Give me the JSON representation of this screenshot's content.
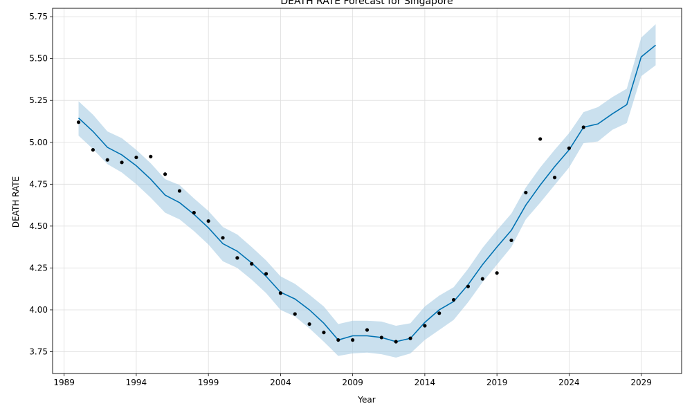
{
  "chart_data": {
    "type": "line",
    "title": "DEATH RATE Forecast for Singapore",
    "xlabel": "Year",
    "ylabel": "DEATH RATE",
    "xlim": [
      1988.2,
      2031.8
    ],
    "ylim": [
      3.62,
      5.8
    ],
    "x_ticks": [
      1989,
      1994,
      1999,
      2004,
      2009,
      2014,
      2019,
      2024,
      2029
    ],
    "y_ticks": [
      3.75,
      4.0,
      4.25,
      4.5,
      4.75,
      5.0,
      5.25,
      5.5,
      5.75
    ],
    "y_tick_labels": [
      "3.75",
      "4.00",
      "4.25",
      "4.50",
      "4.75",
      "5.00",
      "5.25",
      "5.50",
      "5.75"
    ],
    "grid": true,
    "colors": {
      "forecast": "#0072B2",
      "interval": "#a6cbe3",
      "observed": "#000000"
    },
    "series": [
      {
        "role": "observed",
        "x": [
          1990,
          1991,
          1992,
          1993,
          1994,
          1995,
          1996,
          1997,
          1998,
          1999,
          2000,
          2001,
          2002,
          2003,
          2004,
          2005,
          2006,
          2007,
          2008,
          2009,
          2010,
          2011,
          2012,
          2013,
          2014,
          2015,
          2016,
          2017,
          2018,
          2019,
          2020,
          2021,
          2022,
          2023,
          2024,
          2025
        ],
        "values": [
          5.12,
          4.955,
          4.895,
          4.88,
          4.91,
          4.915,
          4.81,
          4.71,
          4.58,
          4.53,
          4.43,
          4.31,
          4.275,
          4.215,
          4.1,
          3.975,
          3.915,
          3.865,
          3.82,
          3.82,
          3.88,
          3.835,
          3.81,
          3.83,
          3.905,
          3.98,
          4.06,
          4.14,
          4.185,
          4.22,
          4.415,
          4.7,
          5.02,
          4.79,
          4.965,
          5.09
        ]
      },
      {
        "role": "forecast",
        "x": [
          1990,
          1991,
          1992,
          1993,
          1994,
          1995,
          1996,
          1997,
          1998,
          1999,
          2000,
          2001,
          2002,
          2003,
          2004,
          2005,
          2006,
          2007,
          2008,
          2009,
          2010,
          2011,
          2012,
          2013,
          2014,
          2015,
          2016,
          2017,
          2018,
          2019,
          2020,
          2021,
          2022,
          2023,
          2024,
          2025,
          2026,
          2027,
          2028,
          2029,
          2030
        ],
        "values": [
          5.145,
          5.065,
          4.97,
          4.925,
          4.86,
          4.78,
          4.685,
          4.64,
          4.57,
          4.49,
          4.395,
          4.35,
          4.28,
          4.2,
          4.105,
          4.065,
          4.0,
          3.92,
          3.82,
          3.845,
          3.845,
          3.835,
          3.81,
          3.83,
          3.925,
          4.0,
          4.05,
          4.15,
          4.27,
          4.375,
          4.475,
          4.625,
          4.745,
          4.855,
          4.955,
          5.09,
          5.11,
          5.17,
          5.225,
          5.51,
          5.58
        ],
        "lower": [
          5.04,
          4.96,
          4.87,
          4.82,
          4.75,
          4.67,
          4.58,
          4.54,
          4.47,
          4.39,
          4.29,
          4.25,
          4.18,
          4.1,
          4.0,
          3.96,
          3.89,
          3.81,
          3.725,
          3.74,
          3.745,
          3.735,
          3.715,
          3.74,
          3.82,
          3.88,
          3.94,
          4.045,
          4.165,
          4.27,
          4.375,
          4.54,
          4.64,
          4.745,
          4.85,
          4.995,
          5.005,
          5.075,
          5.115,
          5.395,
          5.46
        ],
        "upper": [
          5.245,
          5.165,
          5.065,
          5.025,
          4.955,
          4.875,
          4.78,
          4.745,
          4.665,
          4.59,
          4.495,
          4.45,
          4.375,
          4.295,
          4.2,
          4.155,
          4.09,
          4.02,
          3.915,
          3.935,
          3.935,
          3.93,
          3.905,
          3.92,
          4.02,
          4.085,
          4.135,
          4.245,
          4.37,
          4.475,
          4.575,
          4.73,
          4.85,
          4.955,
          5.055,
          5.18,
          5.21,
          5.27,
          5.32,
          5.625,
          5.705
        ]
      }
    ]
  }
}
